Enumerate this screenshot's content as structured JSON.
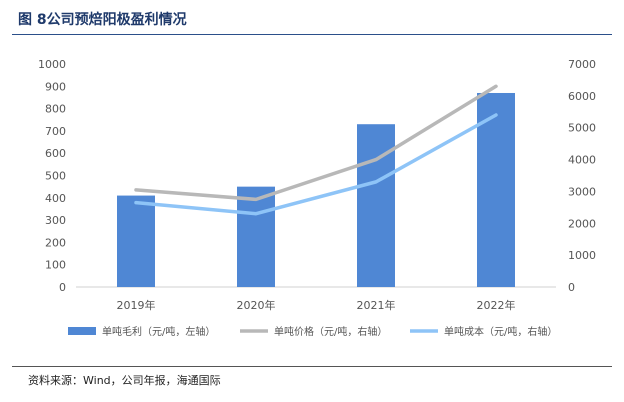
{
  "figure": {
    "title": "图 8公司预焙阳极盈利情况",
    "source": "资料来源：Wind，公司年报，海通国际"
  },
  "colors": {
    "bar": "#4f87d4",
    "price_line": "#b8b8b8",
    "cost_line": "#8ec4f7",
    "title": "#1f3a6b"
  },
  "chart_data": {
    "type": "bar",
    "categories": [
      "2019年",
      "2020年",
      "2021年",
      "2022年"
    ],
    "left_axis": {
      "min": 0,
      "max": 1000,
      "step": 100,
      "ticks": [
        "0",
        "100",
        "200",
        "300",
        "400",
        "500",
        "600",
        "700",
        "800",
        "900",
        "1000"
      ]
    },
    "right_axis": {
      "min": 0,
      "max": 7000,
      "step": 1000,
      "ticks": [
        "0",
        "1000",
        "2000",
        "3000",
        "4000",
        "5000",
        "6000",
        "7000"
      ]
    },
    "series": [
      {
        "name": "单吨毛利（元/吨，左轴）",
        "kind": "bar",
        "axis": "left",
        "values": [
          410,
          450,
          730,
          870
        ]
      },
      {
        "name": "单吨价格（元/吨，右轴）",
        "kind": "line",
        "axis": "right",
        "values": [
          3050,
          2750,
          4000,
          6300
        ]
      },
      {
        "name": "单吨成本（元/吨，右轴）",
        "kind": "line",
        "axis": "right",
        "values": [
          2650,
          2300,
          3300,
          5400
        ]
      }
    ],
    "grid": false,
    "legend": "bottom"
  }
}
